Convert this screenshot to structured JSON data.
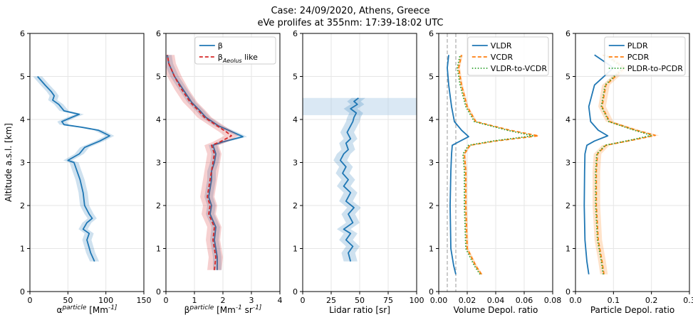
{
  "title_line1": "Case: 24/09/2020, Athens, Greece",
  "title_line2": "eVe prolifes at 355nm: 17:39-18:02 UTC",
  "colors": {
    "blue": "#1f77b4",
    "orange": "#ff7f0e",
    "green": "#2ca02c",
    "red": "#d62728",
    "grey": "#999999"
  },
  "chart_data": [
    {
      "type": "line",
      "xlabel": "α^particle [Mm^-1]",
      "ylabel": "Altitude a.s.l. [km]",
      "xlim": [
        0,
        150
      ],
      "ylim": [
        0,
        6
      ],
      "xticks": [
        "0",
        "50",
        "100",
        "150"
      ],
      "yticks": [
        "0",
        "1",
        "2",
        "3",
        "4",
        "5",
        "6"
      ],
      "grid": true,
      "series": [
        {
          "color": "#1f77b4",
          "style": "solid",
          "band": 6,
          "points": [
            [
              85,
              0.7
            ],
            [
              80,
              0.9
            ],
            [
              75,
              1.2
            ],
            [
              78,
              1.35
            ],
            [
              70,
              1.45
            ],
            [
              75,
              1.6
            ],
            [
              82,
              1.7
            ],
            [
              78,
              1.8
            ],
            [
              72,
              2.0
            ],
            [
              70,
              2.3
            ],
            [
              66,
              2.6
            ],
            [
              62,
              2.8
            ],
            [
              58,
              3.0
            ],
            [
              50,
              3.05
            ],
            [
              65,
              3.2
            ],
            [
              72,
              3.35
            ],
            [
              92,
              3.5
            ],
            [
              105,
              3.62
            ],
            [
              90,
              3.75
            ],
            [
              68,
              3.82
            ],
            [
              45,
              3.88
            ],
            [
              42,
              3.95
            ],
            [
              55,
              4.05
            ],
            [
              65,
              4.12
            ],
            [
              45,
              4.2
            ],
            [
              38,
              4.35
            ],
            [
              30,
              4.45
            ],
            [
              32,
              4.55
            ],
            [
              28,
              4.65
            ],
            [
              20,
              4.8
            ],
            [
              10,
              5.0
            ]
          ]
        }
      ]
    },
    {
      "type": "line",
      "xlabel": "β^particle [Mm^-1 sr^-1]",
      "xlim": [
        0,
        4
      ],
      "ylim": [
        0,
        6
      ],
      "xticks": [
        "0",
        "1",
        "2",
        "3",
        "4"
      ],
      "yticks": [
        "0",
        "1",
        "2",
        "3",
        "4",
        "5",
        "6"
      ],
      "grid": true,
      "legend": {
        "position": "top-right",
        "entries": [
          "β",
          "β_Aeolus like"
        ]
      },
      "series": [
        {
          "name": "β",
          "color": "#1f77b4",
          "style": "solid",
          "band": 0.15,
          "points": [
            [
              1.8,
              0.5
            ],
            [
              1.8,
              0.8
            ],
            [
              1.7,
              1.2
            ],
            [
              1.75,
              1.5
            ],
            [
              1.55,
              1.8
            ],
            [
              1.6,
              2.0
            ],
            [
              1.5,
              2.2
            ],
            [
              1.55,
              2.4
            ],
            [
              1.6,
              2.6
            ],
            [
              1.6,
              2.8
            ],
            [
              1.7,
              3.0
            ],
            [
              1.75,
              3.2
            ],
            [
              1.65,
              3.4
            ],
            [
              2.0,
              3.48
            ],
            [
              2.7,
              3.6
            ],
            [
              2.3,
              3.72
            ],
            [
              1.85,
              3.85
            ],
            [
              1.4,
              4.05
            ],
            [
              1.2,
              4.2
            ],
            [
              0.9,
              4.4
            ],
            [
              0.6,
              4.7
            ],
            [
              0.3,
              5.0
            ],
            [
              0.1,
              5.3
            ],
            [
              0.05,
              5.5
            ]
          ]
        },
        {
          "name": "β_Aeolus like",
          "color": "#d62728",
          "style": "dashed",
          "band": 0.25,
          "points": [
            [
              1.7,
              0.5
            ],
            [
              1.75,
              0.8
            ],
            [
              1.65,
              1.2
            ],
            [
              1.7,
              1.5
            ],
            [
              1.5,
              1.8
            ],
            [
              1.55,
              2.0
            ],
            [
              1.45,
              2.2
            ],
            [
              1.5,
              2.4
            ],
            [
              1.55,
              2.6
            ],
            [
              1.6,
              2.8
            ],
            [
              1.65,
              3.0
            ],
            [
              1.7,
              3.2
            ],
            [
              1.6,
              3.4
            ],
            [
              1.9,
              3.48
            ],
            [
              2.3,
              3.62
            ],
            [
              2.1,
              3.72
            ],
            [
              1.8,
              3.85
            ],
            [
              1.35,
              4.05
            ],
            [
              1.15,
              4.2
            ],
            [
              0.85,
              4.4
            ],
            [
              0.55,
              4.7
            ],
            [
              0.3,
              5.0
            ],
            [
              0.1,
              5.3
            ],
            [
              0.05,
              5.5
            ]
          ]
        }
      ]
    },
    {
      "type": "line",
      "xlabel": "Lidar ratio [sr]",
      "xlim": [
        0,
        100
      ],
      "ylim": [
        0,
        6
      ],
      "xticks": [
        "0",
        "25",
        "50",
        "75",
        "100"
      ],
      "yticks": [
        "0",
        "1",
        "2",
        "3",
        "4",
        "5",
        "6"
      ],
      "grid": true,
      "series": [
        {
          "color": "#1f77b4",
          "style": "solid",
          "band": 6,
          "points": [
            [
              42,
              0.7
            ],
            [
              40,
              0.9
            ],
            [
              44,
              1.05
            ],
            [
              38,
              1.2
            ],
            [
              42,
              1.35
            ],
            [
              36,
              1.45
            ],
            [
              44,
              1.6
            ],
            [
              40,
              1.8
            ],
            [
              45,
              1.95
            ],
            [
              38,
              2.1
            ],
            [
              42,
              2.3
            ],
            [
              36,
              2.45
            ],
            [
              40,
              2.6
            ],
            [
              35,
              2.75
            ],
            [
              38,
              2.9
            ],
            [
              33,
              3.05
            ],
            [
              36,
              3.2
            ],
            [
              40,
              3.3
            ],
            [
              38,
              3.45
            ],
            [
              42,
              3.55
            ],
            [
              39,
              3.7
            ],
            [
              42,
              3.85
            ],
            [
              44,
              3.95
            ],
            [
              45,
              4.05
            ],
            [
              47,
              4.15
            ],
            [
              42,
              4.25
            ],
            [
              48,
              4.35
            ],
            [
              45,
              4.42
            ],
            [
              49,
              4.5
            ]
          ]
        }
      ],
      "wide_band": {
        "from": 4.1,
        "to": 4.5,
        "xmin": 0,
        "xmax": 100
      }
    },
    {
      "type": "line",
      "xlabel": "Volume Depol. ratio",
      "xlim": [
        0,
        0.08
      ],
      "ylim": [
        0,
        6
      ],
      "xticks": [
        "0.00",
        "0.02",
        "0.04",
        "0.06",
        "0.08"
      ],
      "yticks": [
        "0",
        "1",
        "2",
        "3",
        "4",
        "5",
        "6"
      ],
      "grid": true,
      "vlines": [
        0.006,
        0.012
      ],
      "legend": {
        "position": "top-right",
        "entries": [
          "VLDR",
          "VCDR",
          "VLDR-to-VCDR"
        ]
      },
      "series": [
        {
          "name": "VLDR",
          "color": "#1f77b4",
          "style": "solid",
          "band": 0,
          "points": [
            [
              0.012,
              0.4
            ],
            [
              0.0105,
              0.6
            ],
            [
              0.0085,
              1.0
            ],
            [
              0.008,
              2.0
            ],
            [
              0.0085,
              2.8
            ],
            [
              0.009,
              3.2
            ],
            [
              0.0095,
              3.4
            ],
            [
              0.014,
              3.48
            ],
            [
              0.021,
              3.6
            ],
            [
              0.016,
              3.75
            ],
            [
              0.011,
              3.95
            ],
            [
              0.009,
              4.3
            ],
            [
              0.007,
              4.8
            ],
            [
              0.006,
              5.2
            ],
            [
              0.007,
              5.5
            ]
          ]
        },
        {
          "name": "VCDR",
          "color": "#ff7f0e",
          "style": "dashed",
          "band": 0.001,
          "points": [
            [
              0.03,
              0.4
            ],
            [
              0.026,
              0.6
            ],
            [
              0.02,
              1.0
            ],
            [
              0.019,
              2.0
            ],
            [
              0.019,
              2.8
            ],
            [
              0.018,
              3.2
            ],
            [
              0.022,
              3.4
            ],
            [
              0.04,
              3.5
            ],
            [
              0.07,
              3.62
            ],
            [
              0.05,
              3.75
            ],
            [
              0.026,
              3.95
            ],
            [
              0.02,
              4.3
            ],
            [
              0.016,
              4.8
            ],
            [
              0.014,
              5.2
            ],
            [
              0.016,
              5.5
            ]
          ]
        },
        {
          "name": "VLDR-to-VCDR",
          "color": "#2ca02c",
          "style": "dotted",
          "band": 0,
          "points": [
            [
              0.029,
              0.4
            ],
            [
              0.025,
              0.6
            ],
            [
              0.019,
              1.0
            ],
            [
              0.018,
              2.0
            ],
            [
              0.018,
              2.8
            ],
            [
              0.017,
              3.2
            ],
            [
              0.021,
              3.4
            ],
            [
              0.038,
              3.5
            ],
            [
              0.066,
              3.62
            ],
            [
              0.048,
              3.75
            ],
            [
              0.025,
              3.95
            ],
            [
              0.019,
              4.3
            ],
            [
              0.015,
              4.8
            ],
            [
              0.013,
              5.2
            ],
            [
              0.015,
              5.5
            ]
          ]
        }
      ]
    },
    {
      "type": "line",
      "xlabel": "Particle Depol. ratio",
      "xlim": [
        0,
        0.3
      ],
      "ylim": [
        0,
        6
      ],
      "xticks": [
        "0.0",
        "0.1",
        "0.2",
        "0.3"
      ],
      "yticks": [
        "0",
        "1",
        "2",
        "3",
        "4",
        "5",
        "6"
      ],
      "grid": true,
      "legend": {
        "position": "top-right",
        "entries": [
          "PLDR",
          "PCDR",
          "PLDR-to-PCDR"
        ]
      },
      "series": [
        {
          "name": "PLDR",
          "color": "#1f77b4",
          "style": "solid",
          "band": 0,
          "points": [
            [
              0.035,
              0.4
            ],
            [
              0.03,
              0.7
            ],
            [
              0.025,
              1.2
            ],
            [
              0.023,
              2.0
            ],
            [
              0.024,
              2.8
            ],
            [
              0.025,
              3.2
            ],
            [
              0.03,
              3.4
            ],
            [
              0.05,
              3.5
            ],
            [
              0.085,
              3.62
            ],
            [
              0.06,
              3.75
            ],
            [
              0.04,
              3.95
            ],
            [
              0.035,
              4.3
            ],
            [
              0.05,
              4.8
            ],
            [
              0.1,
              5.2
            ],
            [
              0.05,
              5.5
            ]
          ]
        },
        {
          "name": "PCDR",
          "color": "#ff7f0e",
          "style": "dashed",
          "band": 0.01,
          "points": [
            [
              0.075,
              0.4
            ],
            [
              0.07,
              0.7
            ],
            [
              0.06,
              1.2
            ],
            [
              0.055,
              2.0
            ],
            [
              0.055,
              2.8
            ],
            [
              0.058,
              3.2
            ],
            [
              0.08,
              3.4
            ],
            [
              0.15,
              3.52
            ],
            [
              0.21,
              3.63
            ],
            [
              0.16,
              3.75
            ],
            [
              0.09,
              3.95
            ],
            [
              0.07,
              4.3
            ],
            [
              0.08,
              4.8
            ],
            [
              0.13,
              5.2
            ],
            [
              0.08,
              5.5
            ]
          ]
        },
        {
          "name": "PLDR-to-PCDR",
          "color": "#2ca02c",
          "style": "dotted",
          "band": 0,
          "points": [
            [
              0.073,
              0.4
            ],
            [
              0.068,
              0.7
            ],
            [
              0.058,
              1.2
            ],
            [
              0.053,
              2.0
            ],
            [
              0.053,
              2.8
            ],
            [
              0.056,
              3.2
            ],
            [
              0.078,
              3.4
            ],
            [
              0.145,
              3.52
            ],
            [
              0.2,
              3.63
            ],
            [
              0.155,
              3.75
            ],
            [
              0.088,
              3.95
            ],
            [
              0.068,
              4.3
            ],
            [
              0.078,
              4.8
            ],
            [
              0.125,
              5.2
            ],
            [
              0.078,
              5.5
            ]
          ]
        }
      ]
    }
  ]
}
